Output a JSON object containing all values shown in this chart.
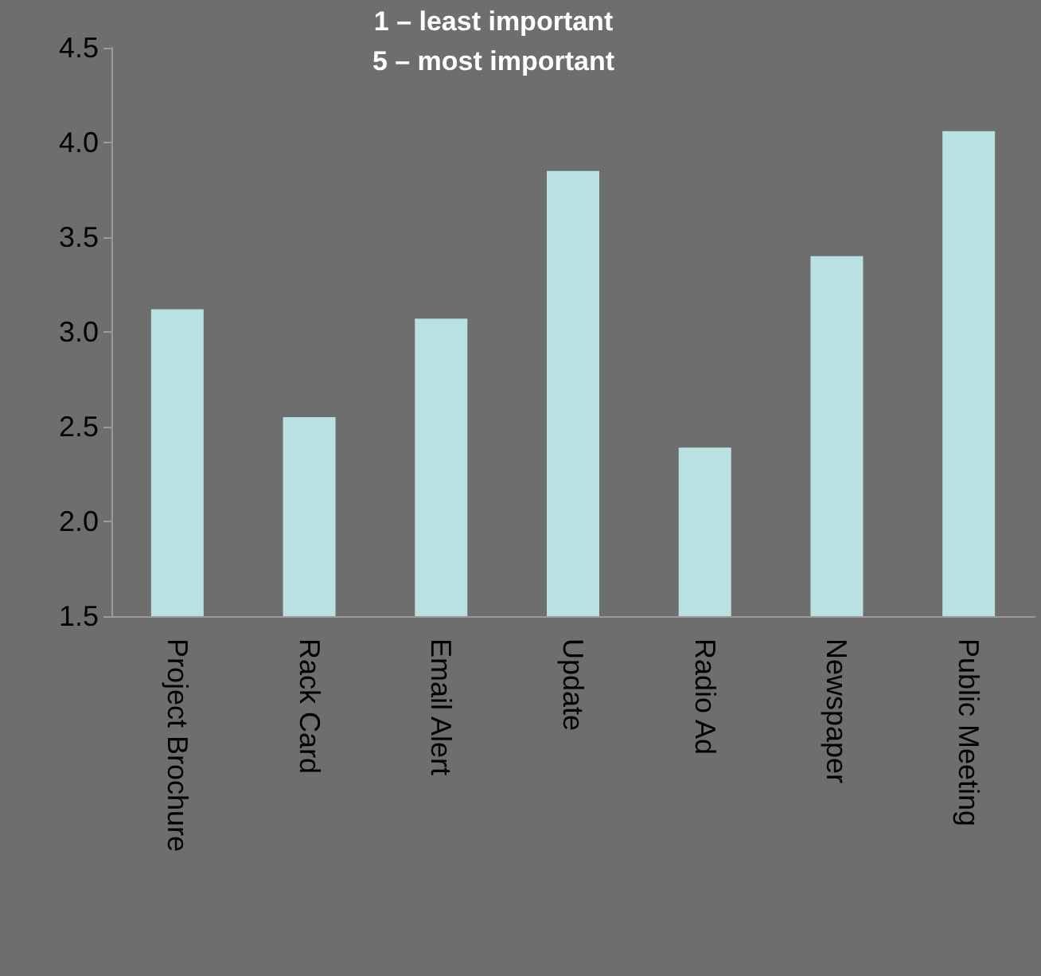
{
  "chart_data": {
    "type": "bar",
    "categories": [
      "Project Brochure",
      "Rack Card",
      "Email Alert",
      "Update",
      "Radio Ad",
      "Newspaper",
      "Public Meeting"
    ],
    "values": [
      3.12,
      2.55,
      3.07,
      3.85,
      2.39,
      3.4,
      4.06
    ],
    "color": "#b9e1e2",
    "ylim": [
      1.5,
      4.5
    ],
    "yticks": [
      1.5,
      {
        "value": 2,
        "label": "2.0"
      },
      2.5,
      {
        "value": 3,
        "label": "3.0"
      },
      3.5,
      {
        "value": 4,
        "label": "4.0"
      },
      4.5
    ],
    "annotations": [
      "1 – least important",
      "5 – most important"
    ],
    "grid": false
  }
}
